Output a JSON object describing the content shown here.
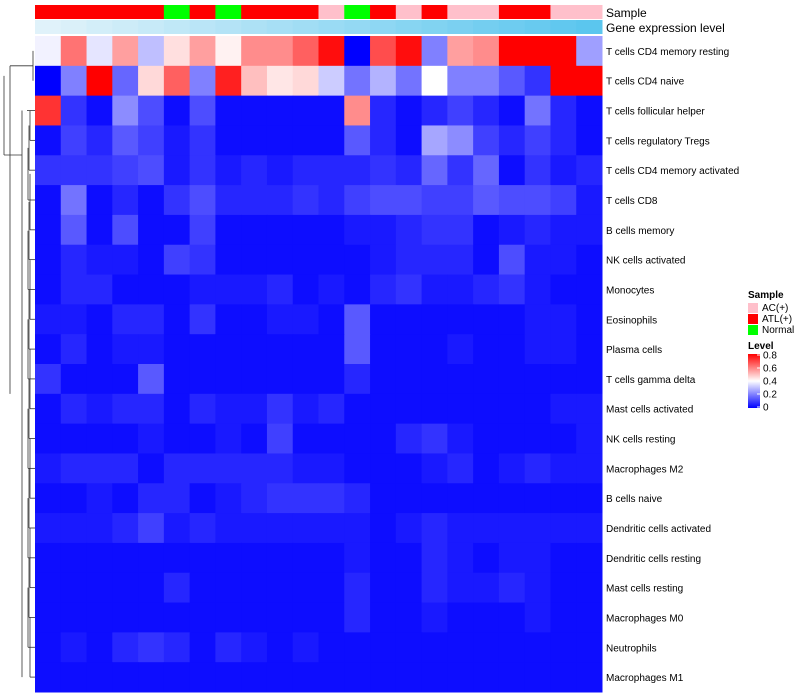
{
  "chart_data": {
    "type": "heatmap",
    "annotation_labels": [
      "Sample",
      "Gene expression level"
    ],
    "rows": [
      "T cells CD4 memory resting",
      "T cells CD4 naive",
      "T cells follicular helper",
      "T cells regulatory  Tregs",
      "T cells CD4 memory activated",
      "T cells CD8",
      "B cells memory",
      "NK cells activated",
      "Monocytes",
      "Eosinophils",
      "Plasma cells",
      "T cells gamma delta",
      "Mast cells activated",
      "NK cells resting",
      "Macrophages M2",
      "B cells naive",
      "Dendritic cells activated",
      "Dendritic cells resting",
      "Mast cells resting",
      "Macrophages M0",
      "Neutrophils",
      "Macrophages M1"
    ],
    "sample_groups": [
      "ATL(+)",
      "ATL(+)",
      "ATL(+)",
      "ATL(+)",
      "ATL(+)",
      "Normal",
      "ATL(+)",
      "Normal",
      "ATL(+)",
      "ATL(+)",
      "ATL(+)",
      "AC(+)",
      "Normal",
      "ATL(+)",
      "AC(+)",
      "ATL(+)",
      "AC(+)",
      "AC(+)",
      "ATL(+)",
      "ATL(+)",
      "AC(+)",
      "AC(+)"
    ],
    "expression_level": [
      0.12,
      0.14,
      0.16,
      0.18,
      0.2,
      0.22,
      0.24,
      0.26,
      0.28,
      0.3,
      0.32,
      0.34,
      0.36,
      0.38,
      0.4,
      0.42,
      0.44,
      0.46,
      0.48,
      0.5,
      0.52,
      0.54
    ],
    "values": [
      [
        0.38,
        0.62,
        0.36,
        0.55,
        0.3,
        0.45,
        0.55,
        0.42,
        0.58,
        0.58,
        0.65,
        0.78,
        0.0,
        0.68,
        0.78,
        0.2,
        0.55,
        0.58,
        0.8,
        0.8,
        0.8,
        0.25
      ],
      [
        0.0,
        0.2,
        0.8,
        0.16,
        0.46,
        0.65,
        0.2,
        0.75,
        0.5,
        0.44,
        0.46,
        0.32,
        0.18,
        0.28,
        0.18,
        0.4,
        0.2,
        0.2,
        0.14,
        0.08,
        0.8,
        0.8
      ],
      [
        0.72,
        0.08,
        0.02,
        0.22,
        0.12,
        0.02,
        0.12,
        0.02,
        0.02,
        0.02,
        0.02,
        0.02,
        0.58,
        0.06,
        0.02,
        0.06,
        0.1,
        0.06,
        0.02,
        0.18,
        0.06,
        0.02
      ],
      [
        0.02,
        0.1,
        0.06,
        0.14,
        0.1,
        0.04,
        0.08,
        0.02,
        0.02,
        0.02,
        0.02,
        0.02,
        0.14,
        0.06,
        0.02,
        0.26,
        0.22,
        0.1,
        0.06,
        0.1,
        0.06,
        0.02
      ],
      [
        0.08,
        0.08,
        0.08,
        0.1,
        0.12,
        0.04,
        0.08,
        0.04,
        0.06,
        0.04,
        0.06,
        0.06,
        0.06,
        0.08,
        0.06,
        0.16,
        0.08,
        0.16,
        0.02,
        0.08,
        0.04,
        0.06
      ],
      [
        0.02,
        0.18,
        0.02,
        0.06,
        0.02,
        0.08,
        0.12,
        0.06,
        0.06,
        0.06,
        0.08,
        0.06,
        0.1,
        0.12,
        0.12,
        0.1,
        0.1,
        0.14,
        0.12,
        0.12,
        0.1,
        0.04
      ],
      [
        0.02,
        0.14,
        0.02,
        0.12,
        0.02,
        0.02,
        0.1,
        0.02,
        0.02,
        0.02,
        0.02,
        0.02,
        0.04,
        0.04,
        0.06,
        0.08,
        0.08,
        0.02,
        0.04,
        0.06,
        0.04,
        0.04
      ],
      [
        0.02,
        0.06,
        0.04,
        0.04,
        0.02,
        0.1,
        0.08,
        0.02,
        0.02,
        0.02,
        0.02,
        0.02,
        0.02,
        0.04,
        0.06,
        0.06,
        0.06,
        0.02,
        0.12,
        0.04,
        0.04,
        0.02
      ],
      [
        0.02,
        0.06,
        0.06,
        0.02,
        0.02,
        0.02,
        0.04,
        0.04,
        0.04,
        0.06,
        0.02,
        0.04,
        0.02,
        0.06,
        0.08,
        0.04,
        0.04,
        0.06,
        0.08,
        0.04,
        0.02,
        0.02
      ],
      [
        0.04,
        0.04,
        0.02,
        0.06,
        0.06,
        0.02,
        0.08,
        0.02,
        0.02,
        0.04,
        0.04,
        0.02,
        0.14,
        0.02,
        0.02,
        0.02,
        0.02,
        0.02,
        0.02,
        0.04,
        0.04,
        0.02
      ],
      [
        0.02,
        0.06,
        0.02,
        0.04,
        0.04,
        0.02,
        0.02,
        0.02,
        0.02,
        0.02,
        0.02,
        0.02,
        0.14,
        0.02,
        0.02,
        0.02,
        0.04,
        0.02,
        0.02,
        0.04,
        0.04,
        0.02
      ],
      [
        0.08,
        0.02,
        0.02,
        0.02,
        0.14,
        0.02,
        0.02,
        0.02,
        0.02,
        0.02,
        0.02,
        0.02,
        0.06,
        0.02,
        0.02,
        0.02,
        0.02,
        0.02,
        0.02,
        0.02,
        0.02,
        0.02
      ],
      [
        0.02,
        0.06,
        0.04,
        0.06,
        0.06,
        0.02,
        0.06,
        0.04,
        0.04,
        0.08,
        0.04,
        0.06,
        0.02,
        0.02,
        0.02,
        0.02,
        0.02,
        0.02,
        0.02,
        0.02,
        0.04,
        0.04
      ],
      [
        0.02,
        0.02,
        0.02,
        0.02,
        0.04,
        0.02,
        0.02,
        0.04,
        0.02,
        0.1,
        0.02,
        0.02,
        0.02,
        0.02,
        0.06,
        0.08,
        0.04,
        0.02,
        0.02,
        0.02,
        0.02,
        0.04
      ],
      [
        0.04,
        0.06,
        0.06,
        0.06,
        0.02,
        0.06,
        0.06,
        0.06,
        0.06,
        0.06,
        0.04,
        0.04,
        0.02,
        0.02,
        0.02,
        0.04,
        0.06,
        0.02,
        0.04,
        0.06,
        0.04,
        0.04
      ],
      [
        0.02,
        0.02,
        0.04,
        0.02,
        0.06,
        0.06,
        0.02,
        0.04,
        0.06,
        0.08,
        0.08,
        0.08,
        0.06,
        0.02,
        0.02,
        0.02,
        0.02,
        0.02,
        0.02,
        0.02,
        0.02,
        0.02
      ],
      [
        0.04,
        0.04,
        0.04,
        0.06,
        0.1,
        0.04,
        0.06,
        0.04,
        0.04,
        0.04,
        0.04,
        0.04,
        0.04,
        0.02,
        0.04,
        0.06,
        0.04,
        0.04,
        0.04,
        0.04,
        0.04,
        0.04
      ],
      [
        0.02,
        0.02,
        0.02,
        0.02,
        0.02,
        0.02,
        0.02,
        0.02,
        0.02,
        0.02,
        0.02,
        0.02,
        0.04,
        0.02,
        0.02,
        0.06,
        0.04,
        0.02,
        0.04,
        0.04,
        0.02,
        0.02
      ],
      [
        0.02,
        0.02,
        0.02,
        0.02,
        0.02,
        0.06,
        0.02,
        0.02,
        0.02,
        0.02,
        0.02,
        0.02,
        0.06,
        0.02,
        0.02,
        0.06,
        0.04,
        0.04,
        0.06,
        0.04,
        0.02,
        0.02
      ],
      [
        0.02,
        0.02,
        0.02,
        0.02,
        0.02,
        0.02,
        0.02,
        0.02,
        0.02,
        0.02,
        0.02,
        0.02,
        0.06,
        0.02,
        0.02,
        0.04,
        0.02,
        0.02,
        0.02,
        0.04,
        0.02,
        0.02
      ],
      [
        0.02,
        0.04,
        0.02,
        0.06,
        0.08,
        0.06,
        0.02,
        0.06,
        0.04,
        0.02,
        0.04,
        0.02,
        0.02,
        0.02,
        0.02,
        0.02,
        0.02,
        0.02,
        0.02,
        0.02,
        0.02,
        0.02
      ],
      [
        0.02,
        0.02,
        0.02,
        0.02,
        0.02,
        0.02,
        0.02,
        0.02,
        0.02,
        0.02,
        0.02,
        0.02,
        0.02,
        0.02,
        0.02,
        0.02,
        0.02,
        0.02,
        0.02,
        0.02,
        0.02,
        0.02
      ]
    ],
    "legend_sample": {
      "title": "Sample",
      "items": [
        {
          "label": "AC(+)",
          "color": "#ffc0cb"
        },
        {
          "label": "ATL(+)",
          "color": "#ff0000"
        },
        {
          "label": "Normal",
          "color": "#00ff00"
        }
      ]
    },
    "legend_level": {
      "title": "Level",
      "ticks": [
        "0.8",
        "0.6",
        "0.4",
        "0.2",
        "0"
      ],
      "range": [
        0,
        0.8
      ]
    },
    "color_scale": {
      "low": "#0000ff",
      "mid": "#ffffff",
      "high": "#ff0000",
      "min": 0,
      "max": 0.8
    },
    "annotation_scale": {
      "low": "#e0f2fa",
      "high": "#5bc6ee"
    },
    "legend_placement": "right"
  }
}
